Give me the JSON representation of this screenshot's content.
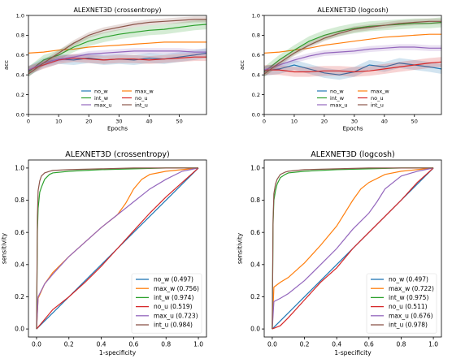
{
  "chart_data": [
    {
      "type": "line",
      "title": "ALEXNET3D (crossentropy)",
      "xlabel": "Epochs",
      "ylabel": "acc",
      "xlim": [
        0,
        59
      ],
      "ylim": [
        0,
        1.0
      ],
      "xticks": [
        0,
        10,
        20,
        30,
        40,
        50
      ],
      "yticks": [
        0.0,
        0.2,
        0.4,
        0.6,
        0.8,
        1.0
      ],
      "legend_position": "bottom-center",
      "legend_columns": 2,
      "x": [
        0,
        5,
        10,
        15,
        20,
        25,
        30,
        35,
        40,
        45,
        50,
        55,
        59
      ],
      "series": [
        {
          "name": "no_w",
          "color": "#1f77b4",
          "band": 0.05,
          "values": [
            0.44,
            0.52,
            0.56,
            0.55,
            0.57,
            0.55,
            0.56,
            0.55,
            0.57,
            0.56,
            0.58,
            0.6,
            0.62
          ]
        },
        {
          "name": "max_w",
          "color": "#ff7f0e",
          "band": 0.0,
          "values": [
            0.62,
            0.63,
            0.65,
            0.66,
            0.68,
            0.69,
            0.7,
            0.71,
            0.72,
            0.73,
            0.73,
            0.73,
            0.73
          ]
        },
        {
          "name": "int_w",
          "color": "#2ca02c",
          "band": 0.05,
          "values": [
            0.43,
            0.55,
            0.6,
            0.68,
            0.74,
            0.78,
            0.81,
            0.83,
            0.85,
            0.86,
            0.88,
            0.9,
            0.91
          ]
        },
        {
          "name": "no_u",
          "color": "#d62728",
          "band": 0.04,
          "values": [
            0.45,
            0.5,
            0.55,
            0.57,
            0.56,
            0.55,
            0.56,
            0.56,
            0.55,
            0.56,
            0.57,
            0.58,
            0.58
          ]
        },
        {
          "name": "max_u",
          "color": "#9467bd",
          "band": 0.03,
          "values": [
            0.45,
            0.52,
            0.56,
            0.58,
            0.61,
            0.62,
            0.63,
            0.64,
            0.64,
            0.64,
            0.64,
            0.63,
            0.63
          ]
        },
        {
          "name": "int_u",
          "color": "#8c564b",
          "band": 0.03,
          "values": [
            0.41,
            0.52,
            0.62,
            0.72,
            0.8,
            0.85,
            0.88,
            0.91,
            0.93,
            0.94,
            0.95,
            0.96,
            0.96
          ]
        }
      ]
    },
    {
      "type": "line",
      "title": "ALEXNET3D (logcosh)",
      "xlabel": "Epochs",
      "ylabel": "acc",
      "xlim": [
        0,
        59
      ],
      "ylim": [
        0,
        1.0
      ],
      "xticks": [
        0,
        10,
        20,
        30,
        40,
        50
      ],
      "yticks": [
        0.0,
        0.2,
        0.4,
        0.6,
        0.8,
        1.0
      ],
      "legend_position": "bottom-center",
      "legend_columns": 2,
      "x": [
        0,
        5,
        10,
        15,
        20,
        25,
        30,
        35,
        40,
        45,
        50,
        55,
        59
      ],
      "series": [
        {
          "name": "no_w",
          "color": "#1f77b4",
          "band": 0.05,
          "values": [
            0.44,
            0.46,
            0.5,
            0.46,
            0.42,
            0.4,
            0.43,
            0.5,
            0.48,
            0.52,
            0.5,
            0.48,
            0.46
          ]
        },
        {
          "name": "max_w",
          "color": "#ff7f0e",
          "band": 0.0,
          "values": [
            0.62,
            0.63,
            0.65,
            0.67,
            0.7,
            0.72,
            0.74,
            0.76,
            0.78,
            0.79,
            0.8,
            0.81,
            0.81
          ]
        },
        {
          "name": "int_w",
          "color": "#2ca02c",
          "band": 0.05,
          "values": [
            0.43,
            0.55,
            0.65,
            0.74,
            0.8,
            0.84,
            0.87,
            0.89,
            0.9,
            0.91,
            0.92,
            0.92,
            0.93
          ]
        },
        {
          "name": "no_u",
          "color": "#d62728",
          "band": 0.05,
          "values": [
            0.45,
            0.45,
            0.43,
            0.43,
            0.44,
            0.44,
            0.43,
            0.44,
            0.46,
            0.48,
            0.5,
            0.52,
            0.53
          ]
        },
        {
          "name": "max_u",
          "color": "#9467bd",
          "band": 0.03,
          "values": [
            0.45,
            0.5,
            0.55,
            0.59,
            0.62,
            0.63,
            0.64,
            0.66,
            0.67,
            0.68,
            0.68,
            0.67,
            0.67
          ]
        },
        {
          "name": "int_u",
          "color": "#8c564b",
          "band": 0.03,
          "values": [
            0.41,
            0.52,
            0.62,
            0.7,
            0.77,
            0.82,
            0.86,
            0.88,
            0.9,
            0.92,
            0.93,
            0.94,
            0.94
          ]
        }
      ]
    },
    {
      "type": "line",
      "title": "ALEXNET3D (crossentropy)",
      "xlabel": "1-specificity",
      "ylabel": "sensitivity",
      "xlim": [
        -0.05,
        1.05
      ],
      "ylim": [
        -0.05,
        1.05
      ],
      "xticks": [
        0.0,
        0.2,
        0.4,
        0.6,
        0.8,
        1.0
      ],
      "yticks": [
        0.0,
        0.2,
        0.4,
        0.6,
        0.8,
        1.0
      ],
      "legend_position": "bottom-right",
      "legend_columns": 1,
      "series": [
        {
          "name": "no_w",
          "legend": "no_w (0.497)",
          "color": "#1f77b4",
          "x": [
            0,
            1
          ],
          "y": [
            0,
            1
          ]
        },
        {
          "name": "max_w",
          "legend": "max_w (0.756)",
          "color": "#ff7f0e",
          "x": [
            0,
            0.01,
            0.05,
            0.1,
            0.2,
            0.3,
            0.4,
            0.5,
            0.55,
            0.6,
            0.65,
            0.7,
            0.75,
            0.8,
            0.9,
            1.0
          ],
          "y": [
            0,
            0.19,
            0.28,
            0.35,
            0.45,
            0.54,
            0.63,
            0.71,
            0.78,
            0.87,
            0.93,
            0.96,
            0.97,
            0.98,
            0.99,
            1.0
          ]
        },
        {
          "name": "int_w",
          "legend": "int_w (0.974)",
          "color": "#2ca02c",
          "x": [
            0,
            0.005,
            0.01,
            0.02,
            0.03,
            0.05,
            0.08,
            0.1,
            0.2,
            0.4,
            0.6,
            0.8,
            1.0
          ],
          "y": [
            0,
            0.6,
            0.75,
            0.85,
            0.88,
            0.93,
            0.96,
            0.97,
            0.98,
            0.99,
            0.995,
            1.0,
            1.0
          ]
        },
        {
          "name": "no_u",
          "legend": "no_u (0.519)",
          "color": "#d62728",
          "x": [
            0,
            0.05,
            0.1,
            0.2,
            0.3,
            0.4,
            0.5,
            0.6,
            0.7,
            0.8,
            0.9,
            1.0
          ],
          "y": [
            0,
            0.06,
            0.12,
            0.2,
            0.29,
            0.39,
            0.5,
            0.61,
            0.72,
            0.82,
            0.91,
            1.0
          ]
        },
        {
          "name": "max_u",
          "legend": "max_u (0.723)",
          "color": "#9467bd",
          "x": [
            0,
            0.01,
            0.05,
            0.1,
            0.2,
            0.3,
            0.4,
            0.5,
            0.6,
            0.7,
            0.8,
            0.9,
            1.0
          ],
          "y": [
            0,
            0.2,
            0.28,
            0.34,
            0.45,
            0.54,
            0.63,
            0.71,
            0.79,
            0.87,
            0.93,
            0.98,
            1.0
          ]
        },
        {
          "name": "int_u",
          "legend": "int_u (0.984)",
          "color": "#8c564b",
          "x": [
            0,
            0.005,
            0.01,
            0.02,
            0.03,
            0.05,
            0.08,
            0.1,
            0.2,
            0.4,
            0.6,
            0.8,
            1.0
          ],
          "y": [
            0,
            0.7,
            0.86,
            0.92,
            0.95,
            0.97,
            0.98,
            0.985,
            0.99,
            0.995,
            1.0,
            1.0,
            1.0
          ]
        }
      ]
    },
    {
      "type": "line",
      "title": "ALEXNET3D (logcosh)",
      "xlabel": "1-specificity",
      "ylabel": "sensitivity",
      "xlim": [
        -0.05,
        1.05
      ],
      "ylim": [
        -0.05,
        1.05
      ],
      "xticks": [
        0.0,
        0.2,
        0.4,
        0.6,
        0.8,
        1.0
      ],
      "yticks": [
        0.0,
        0.2,
        0.4,
        0.6,
        0.8,
        1.0
      ],
      "legend_position": "bottom-right",
      "legend_columns": 1,
      "series": [
        {
          "name": "no_w",
          "legend": "no_w (0.497)",
          "color": "#1f77b4",
          "x": [
            0,
            1
          ],
          "y": [
            0,
            1
          ]
        },
        {
          "name": "max_w",
          "legend": "max_w (0.722)",
          "color": "#ff7f0e",
          "x": [
            0,
            0.01,
            0.05,
            0.1,
            0.2,
            0.3,
            0.4,
            0.45,
            0.5,
            0.55,
            0.6,
            0.7,
            0.8,
            0.9,
            1.0
          ],
          "y": [
            0,
            0.26,
            0.29,
            0.32,
            0.41,
            0.52,
            0.64,
            0.72,
            0.8,
            0.87,
            0.91,
            0.96,
            0.98,
            0.99,
            1.0
          ]
        },
        {
          "name": "int_w",
          "legend": "int_w (0.975)",
          "color": "#2ca02c",
          "x": [
            0,
            0.005,
            0.01,
            0.02,
            0.03,
            0.05,
            0.08,
            0.1,
            0.2,
            0.4,
            0.6,
            0.8,
            1.0
          ],
          "y": [
            0,
            0.65,
            0.8,
            0.86,
            0.9,
            0.94,
            0.96,
            0.97,
            0.98,
            0.99,
            0.995,
            1.0,
            1.0
          ]
        },
        {
          "name": "no_u",
          "legend": "no_u (0.511)",
          "color": "#d62728",
          "x": [
            0,
            0.05,
            0.1,
            0.2,
            0.3,
            0.4,
            0.5,
            0.6,
            0.7,
            0.8,
            0.9,
            1.0
          ],
          "y": [
            0,
            0.02,
            0.07,
            0.18,
            0.29,
            0.38,
            0.5,
            0.6,
            0.7,
            0.8,
            0.91,
            1.0
          ]
        },
        {
          "name": "max_u",
          "legend": "max_u (0.676)",
          "color": "#9467bd",
          "x": [
            0,
            0.01,
            0.05,
            0.1,
            0.2,
            0.3,
            0.4,
            0.5,
            0.6,
            0.65,
            0.7,
            0.8,
            0.9,
            1.0
          ],
          "y": [
            0,
            0.17,
            0.19,
            0.22,
            0.3,
            0.4,
            0.5,
            0.62,
            0.72,
            0.79,
            0.87,
            0.95,
            0.98,
            1.0
          ]
        },
        {
          "name": "int_u",
          "legend": "int_u (0.978)",
          "color": "#8c564b",
          "x": [
            0,
            0.005,
            0.01,
            0.02,
            0.03,
            0.05,
            0.08,
            0.1,
            0.2,
            0.4,
            0.6,
            0.8,
            1.0
          ],
          "y": [
            0,
            0.68,
            0.84,
            0.9,
            0.93,
            0.96,
            0.975,
            0.98,
            0.99,
            0.995,
            1.0,
            1.0,
            1.0
          ]
        }
      ]
    }
  ]
}
